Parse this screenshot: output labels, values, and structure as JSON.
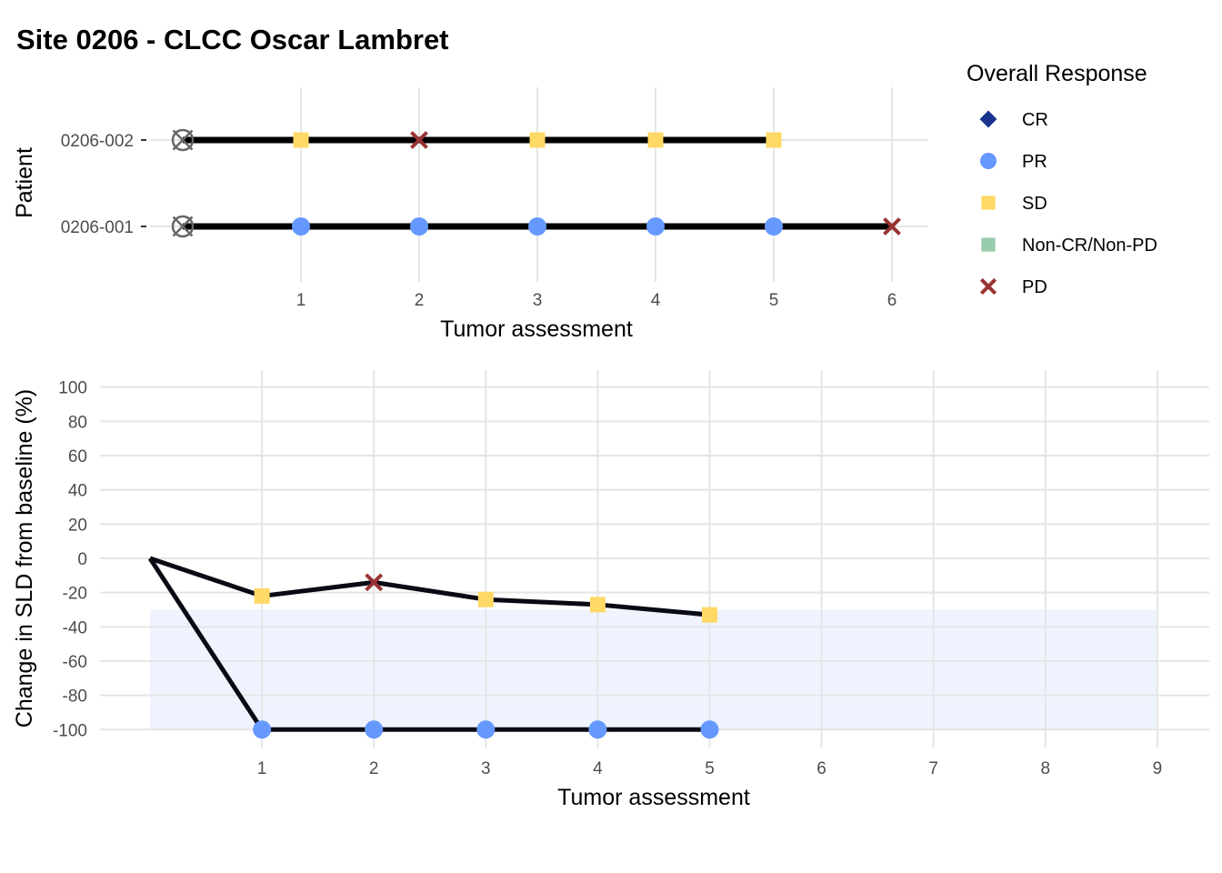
{
  "title": "Site 0206 - CLCC Oscar Lambret",
  "legend": {
    "title": "Overall Response",
    "items": [
      {
        "label": "CR",
        "shape": "diamond",
        "color": "#1a3390"
      },
      {
        "label": "PR",
        "shape": "circle",
        "color": "#6699ff"
      },
      {
        "label": "SD",
        "shape": "square",
        "color": "#ffd966"
      },
      {
        "label": "Non-CR/Non-PD",
        "shape": "square",
        "color": "#99ccaa"
      },
      {
        "label": "PD",
        "shape": "cross",
        "color": "#993333"
      }
    ]
  },
  "chart_data": [
    {
      "type": "scatter",
      "name": "swimmer",
      "xlabel": "Tumor assessment",
      "ylabel": "Patient",
      "x_ticks": [
        1,
        2,
        3,
        4,
        5,
        6
      ],
      "xlim": [
        0,
        6
      ],
      "grid": true,
      "baseline_marker": "circle-x",
      "baseline_color": "#666666",
      "patients": [
        {
          "id": "0206-002",
          "assessments": [
            {
              "x": 1,
              "response": "SD"
            },
            {
              "x": 2,
              "response": "PD"
            },
            {
              "x": 3,
              "response": "SD"
            },
            {
              "x": 4,
              "response": "SD"
            },
            {
              "x": 5,
              "response": "SD"
            }
          ]
        },
        {
          "id": "0206-001",
          "assessments": [
            {
              "x": 1,
              "response": "PR"
            },
            {
              "x": 2,
              "response": "PR"
            },
            {
              "x": 3,
              "response": "PR"
            },
            {
              "x": 4,
              "response": "PR"
            },
            {
              "x": 5,
              "response": "PR"
            },
            {
              "x": 6,
              "response": "PD"
            }
          ]
        }
      ]
    },
    {
      "type": "line",
      "name": "sld-change",
      "xlabel": "Tumor assessment",
      "ylabel": "Change in SLD from baseline (%)",
      "x_ticks": [
        1,
        2,
        3,
        4,
        5,
        6,
        7,
        8,
        9
      ],
      "y_ticks": [
        100,
        80,
        60,
        40,
        20,
        0,
        -20,
        -40,
        -60,
        -80,
        -100
      ],
      "xlim": [
        0,
        9
      ],
      "ylim": [
        -100,
        100
      ],
      "grid": true,
      "shaded_band": {
        "x": [
          0,
          9
        ],
        "y": [
          -100,
          -30
        ],
        "color": "#eef3fd"
      },
      "series": [
        {
          "patient": "0206-002",
          "points": [
            {
              "x": 0,
              "y": 0
            },
            {
              "x": 1,
              "y": -22,
              "response": "SD"
            },
            {
              "x": 2,
              "y": -14,
              "response": "PD"
            },
            {
              "x": 3,
              "y": -24,
              "response": "SD"
            },
            {
              "x": 4,
              "y": -27,
              "response": "SD"
            },
            {
              "x": 5,
              "y": -33,
              "response": "SD"
            }
          ]
        },
        {
          "patient": "0206-001",
          "points": [
            {
              "x": 0,
              "y": 0
            },
            {
              "x": 1,
              "y": -100,
              "response": "PR"
            },
            {
              "x": 2,
              "y": -100,
              "response": "PR"
            },
            {
              "x": 3,
              "y": -100,
              "response": "PR"
            },
            {
              "x": 4,
              "y": -100,
              "response": "PR"
            },
            {
              "x": 5,
              "y": -100,
              "response": "PR"
            }
          ]
        }
      ]
    }
  ]
}
